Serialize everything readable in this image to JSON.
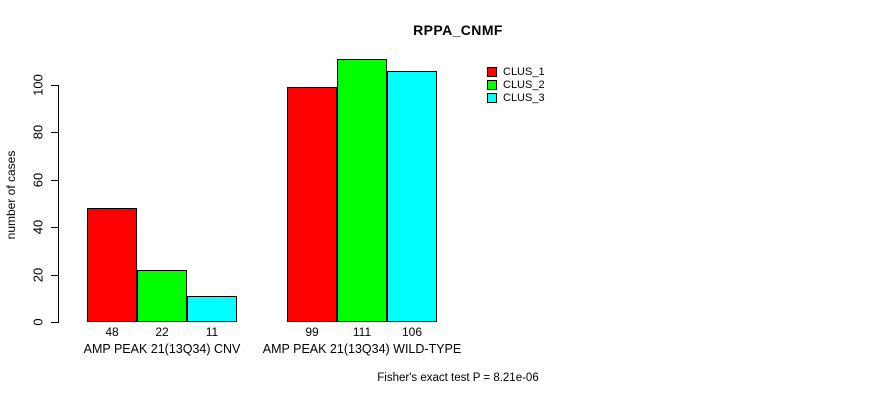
{
  "title": "RPPA_CNMF",
  "ylabel": "number of cases",
  "footer": "Fisher's exact test P = 8.21e-06",
  "legend": [
    {
      "label": "CLUS_1",
      "color": "#FF0000"
    },
    {
      "label": "CLUS_2",
      "color": "#00FF00"
    },
    {
      "label": "CLUS_3",
      "color": "#00FFFF"
    }
  ],
  "chart_data": {
    "type": "bar",
    "title": "RPPA_CNMF",
    "ylabel": "number of cases",
    "xlabel": "",
    "categories": [
      "AMP PEAK 21(13Q34) CNV",
      "AMP PEAK 21(13Q34) WILD-TYPE"
    ],
    "series": [
      {
        "name": "CLUS_1",
        "color": "#FF0000",
        "values": [
          48,
          99
        ]
      },
      {
        "name": "CLUS_2",
        "color": "#00FF00",
        "values": [
          22,
          111
        ]
      },
      {
        "name": "CLUS_3",
        "color": "#00FFFF",
        "values": [
          11,
          106
        ]
      }
    ],
    "yticks": [
      0,
      20,
      40,
      60,
      80,
      100
    ],
    "ylim": [
      0,
      100
    ],
    "grid": false,
    "legend_position": "top-right",
    "bar_value_labels": [
      [
        48,
        22,
        11
      ],
      [
        99,
        111,
        106
      ]
    ],
    "annotation": "Fisher's exact test P = 8.21e-06"
  }
}
